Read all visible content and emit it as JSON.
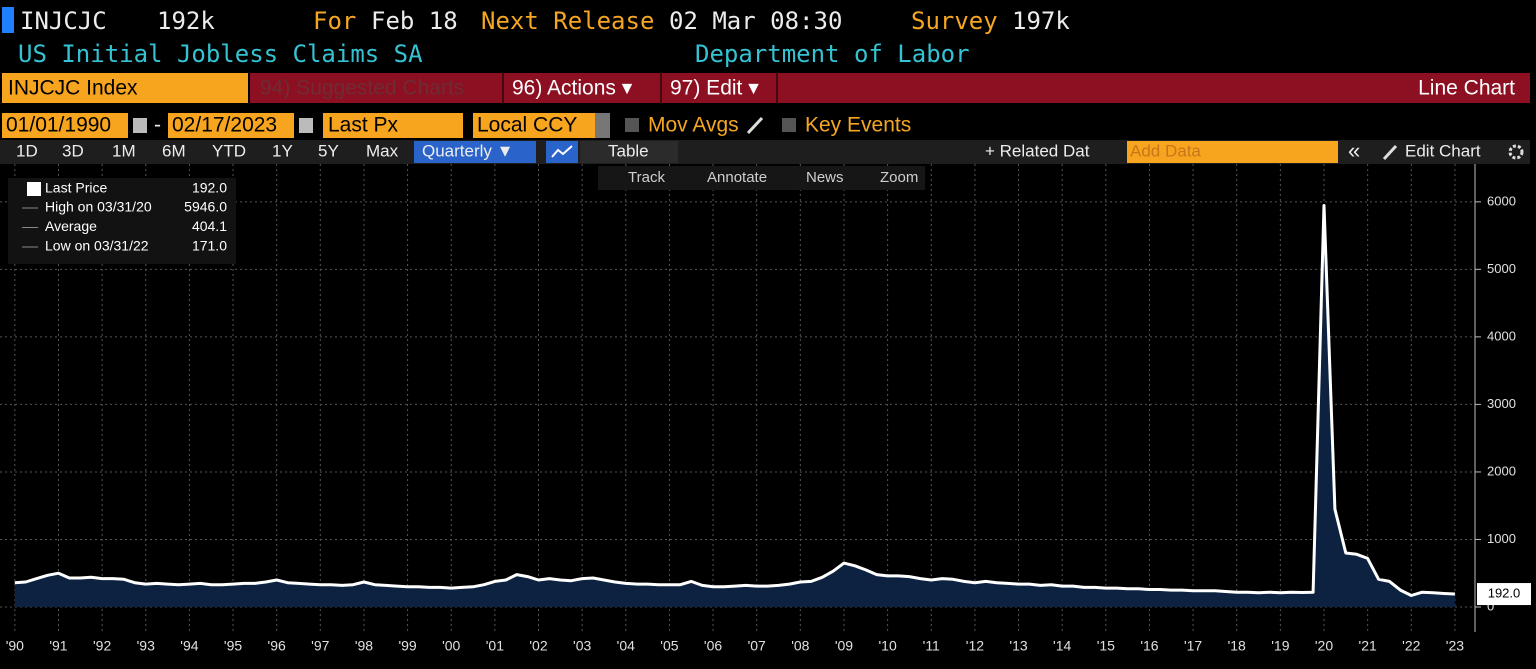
{
  "header": {
    "ticker": "INJCJC",
    "last": "192k",
    "for_label": "For",
    "for_date": "Feb 18",
    "next_label": "Next Release",
    "next_date": "02 Mar 08:30",
    "survey_label": "Survey",
    "survey": "197k",
    "name": "US Initial Jobless Claims SA",
    "source": "Department of Labor"
  },
  "toolbar": {
    "security": "INJCJC Index",
    "suggested": "94) Suggested Charts",
    "actions": "96) Actions ▾",
    "edit": "97) Edit ▾",
    "chart_kind": "Line Chart"
  },
  "controls": {
    "start_date": "01/01/1990",
    "dash": "-",
    "end_date": "02/17/2023",
    "field": "Last Px",
    "currency": "Local CCY",
    "mov_avgs": "Mov Avgs",
    "key_events": "Key Events"
  },
  "ranges": [
    "1D",
    "3D",
    "1M",
    "6M",
    "YTD",
    "1Y",
    "5Y",
    "Max"
  ],
  "periodicity": "Quarterly ▼",
  "table": "Table",
  "related": "+ Related Dat",
  "add_data": "Add Data",
  "collapse": "«",
  "edit_chart": "Edit Chart",
  "chart_tools": [
    "Track",
    "Annotate",
    "News",
    "Zoom"
  ],
  "stats": [
    {
      "label": "High on 03/31/20",
      "value": "5946.0"
    },
    {
      "label": "Average",
      "value": "404.1"
    },
    {
      "label": "Low on 03/31/22",
      "value": "171.0"
    }
  ],
  "last_value": "192.0",
  "chart_data": {
    "type": "area",
    "x": [
      1990,
      1990.25,
      1990.5,
      1990.75,
      1991,
      1991.25,
      1991.5,
      1991.75,
      1992,
      1992.25,
      1992.5,
      1992.75,
      1993,
      1993.25,
      1993.5,
      1993.75,
      1994,
      1994.25,
      1994.5,
      1994.75,
      1995,
      1995.25,
      1995.5,
      1995.75,
      1996,
      1996.25,
      1996.5,
      1996.75,
      1997,
      1997.25,
      1997.5,
      1997.75,
      1998,
      1998.25,
      1998.5,
      1998.75,
      1999,
      1999.25,
      1999.5,
      1999.75,
      2000,
      2000.25,
      2000.5,
      2000.75,
      2001,
      2001.25,
      2001.5,
      2001.75,
      2002,
      2002.25,
      2002.5,
      2002.75,
      2003,
      2003.25,
      2003.5,
      2003.75,
      2004,
      2004.25,
      2004.5,
      2004.75,
      2005,
      2005.25,
      2005.5,
      2005.75,
      2006,
      2006.25,
      2006.5,
      2006.75,
      2007,
      2007.25,
      2007.5,
      2007.75,
      2008,
      2008.25,
      2008.5,
      2008.75,
      2009,
      2009.25,
      2009.5,
      2009.75,
      2010,
      2010.25,
      2010.5,
      2010.75,
      2011,
      2011.25,
      2011.5,
      2011.75,
      2012,
      2012.25,
      2012.5,
      2012.75,
      2013,
      2013.25,
      2013.5,
      2013.75,
      2014,
      2014.25,
      2014.5,
      2014.75,
      2015,
      2015.25,
      2015.5,
      2015.75,
      2016,
      2016.25,
      2016.5,
      2016.75,
      2017,
      2017.25,
      2017.5,
      2017.75,
      2018,
      2018.25,
      2018.5,
      2018.75,
      2019,
      2019.25,
      2019.5,
      2019.75,
      2020,
      2020.25,
      2020.5,
      2020.75,
      2021,
      2021.25,
      2021.5,
      2021.75,
      2022,
      2022.25,
      2022.5,
      2022.75,
      2023
    ],
    "series": [
      {
        "name": "Last Price",
        "color": "#ffffff",
        "fill": "#0c2240",
        "values": [
          360,
          370,
          420,
          470,
          500,
          430,
          430,
          440,
          420,
          420,
          410,
          360,
          340,
          350,
          340,
          330,
          340,
          350,
          330,
          330,
          340,
          350,
          350,
          370,
          400,
          360,
          350,
          340,
          330,
          330,
          320,
          330,
          370,
          330,
          320,
          310,
          300,
          300,
          290,
          290,
          280,
          290,
          300,
          330,
          380,
          400,
          480,
          450,
          400,
          420,
          400,
          390,
          420,
          430,
          400,
          370,
          350,
          340,
          340,
          330,
          330,
          330,
          380,
          320,
          300,
          300,
          310,
          320,
          310,
          310,
          320,
          340,
          370,
          380,
          440,
          530,
          650,
          610,
          550,
          480,
          460,
          460,
          450,
          420,
          400,
          420,
          410,
          380,
          360,
          380,
          360,
          350,
          340,
          340,
          320,
          330,
          310,
          310,
          290,
          290,
          280,
          280,
          270,
          270,
          260,
          260,
          250,
          250,
          240,
          240,
          240,
          230,
          220,
          220,
          210,
          220,
          210,
          220,
          215,
          220,
          5946,
          1450,
          800,
          780,
          720,
          410,
          380,
          250,
          171,
          220,
          210,
          200,
          192
        ]
      }
    ],
    "xlim": [
      1989.66,
      2023.46
    ],
    "ylim": [
      -370,
      6560
    ],
    "xticks": [
      {
        "value": 1990,
        "label": "'90"
      },
      {
        "value": 1991,
        "label": "'91"
      },
      {
        "value": 1992,
        "label": "'92"
      },
      {
        "value": 1993,
        "label": "'93"
      },
      {
        "value": 1994,
        "label": "'94"
      },
      {
        "value": 1995,
        "label": "'95"
      },
      {
        "value": 1996,
        "label": "'96"
      },
      {
        "value": 1997,
        "label": "'97"
      },
      {
        "value": 1998,
        "label": "'98"
      },
      {
        "value": 1999,
        "label": "'99"
      },
      {
        "value": 2000,
        "label": "'00"
      },
      {
        "value": 2001,
        "label": "'01"
      },
      {
        "value": 2002,
        "label": "'02"
      },
      {
        "value": 2003,
        "label": "'03"
      },
      {
        "value": 2004,
        "label": "'04"
      },
      {
        "value": 2005,
        "label": "'05"
      },
      {
        "value": 2006,
        "label": "'06"
      },
      {
        "value": 2007,
        "label": "'07"
      },
      {
        "value": 2008,
        "label": "'08"
      },
      {
        "value": 2009,
        "label": "'09"
      },
      {
        "value": 2010,
        "label": "'10"
      },
      {
        "value": 2011,
        "label": "'11"
      },
      {
        "value": 2012,
        "label": "'12"
      },
      {
        "value": 2013,
        "label": "'13"
      },
      {
        "value": 2014,
        "label": "'14"
      },
      {
        "value": 2015,
        "label": "'15"
      },
      {
        "value": 2016,
        "label": "'16"
      },
      {
        "value": 2017,
        "label": "'17"
      },
      {
        "value": 2018,
        "label": "'18"
      },
      {
        "value": 2019,
        "label": "'19"
      },
      {
        "value": 2020,
        "label": "'20"
      },
      {
        "value": 2021,
        "label": "'21"
      },
      {
        "value": 2022,
        "label": "'22"
      },
      {
        "value": 2023,
        "label": "'23"
      }
    ],
    "yticks": [
      0,
      1000,
      2000,
      3000,
      4000,
      5000,
      6000
    ],
    "grid": true
  }
}
